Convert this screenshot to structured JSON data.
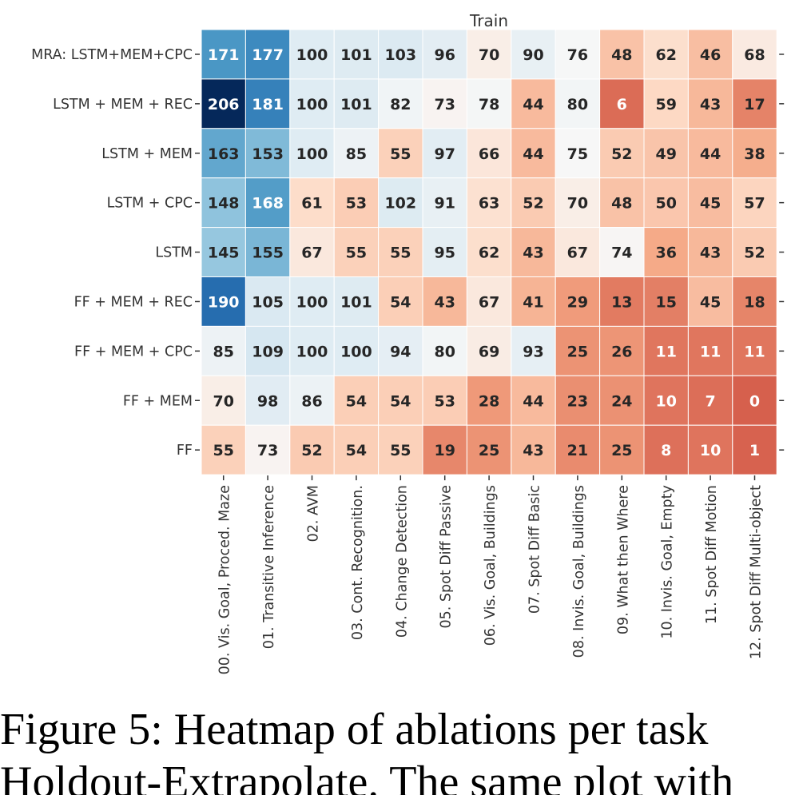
{
  "chart_data": {
    "type": "heatmap",
    "title": "Train",
    "rows": [
      "MRA: LSTM+MEM+CPC",
      "LSTM + MEM + REC",
      "LSTM + MEM",
      "LSTM + CPC",
      "LSTM",
      "FF + MEM + REC",
      "FF + MEM + CPC",
      "FF + MEM",
      "FF"
    ],
    "columns": [
      "00. Vis. Goal, Proced. Maze",
      "01. Transitive Inference",
      "02. AVM",
      "03. Cont. Recognition.",
      "04. Change Detection",
      "05. Spot Diff Passive",
      "06. Vis. Goal, Buildings",
      "07. Spot Diff Basic",
      "08. Invis. Goal, Buildings",
      "09. What then Where",
      "10. Invis. Goal, Empty",
      "11. Spot Diff Motion",
      "12. Spot Diff Multi-object"
    ],
    "values": [
      [
        171,
        177,
        100,
        101,
        103,
        96,
        70,
        90,
        76,
        48,
        62,
        46,
        68
      ],
      [
        206,
        181,
        100,
        101,
        82,
        73,
        78,
        44,
        80,
        6,
        59,
        43,
        17
      ],
      [
        163,
        153,
        100,
        85,
        55,
        97,
        66,
        44,
        75,
        52,
        49,
        44,
        38
      ],
      [
        148,
        168,
        61,
        53,
        102,
        91,
        63,
        52,
        70,
        48,
        50,
        45,
        57
      ],
      [
        145,
        155,
        67,
        55,
        55,
        95,
        62,
        43,
        67,
        74,
        36,
        43,
        52
      ],
      [
        190,
        105,
        100,
        101,
        54,
        43,
        67,
        41,
        29,
        13,
        15,
        45,
        18
      ],
      [
        85,
        109,
        100,
        100,
        94,
        80,
        69,
        93,
        25,
        26,
        11,
        11,
        11
      ],
      [
        70,
        98,
        86,
        54,
        54,
        53,
        28,
        44,
        23,
        24,
        10,
        7,
        0
      ],
      [
        55,
        73,
        52,
        54,
        55,
        19,
        25,
        43,
        21,
        25,
        8,
        10,
        1
      ]
    ],
    "colormap": "RdBu",
    "color_center": 75,
    "color_min": 0,
    "color_max": 206
  },
  "caption": {
    "line1": "Figure 5: Heatmap of ablations per task",
    "line2": "Holdout-Extrapolate. The same plot with"
  }
}
